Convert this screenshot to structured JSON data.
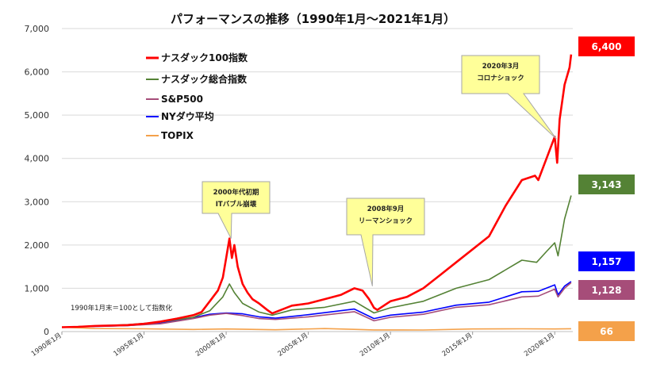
{
  "chart_data": {
    "type": "line",
    "title": "パフォーマンスの推移（1990年1月～2021年1月）",
    "note": "1990年1月末＝100として指数化",
    "ylim": [
      0,
      7000
    ],
    "y_ticks": [
      "0",
      "1,000",
      "2,000",
      "3,000",
      "4,000",
      "5,000",
      "6,000",
      "7,000"
    ],
    "x_tick_labels": [
      "1990年1月",
      "1995年1月",
      "2000年1月",
      "2005年1月",
      "2010年1月",
      "2015年1月",
      "2020年1月"
    ],
    "x_tick_years": [
      1990,
      1995,
      2000,
      2005,
      2010,
      2015,
      2020
    ],
    "xlim": [
      1990.0,
      2021.1
    ],
    "grid": true,
    "legend_position": "top-left",
    "series": [
      {
        "name": "ナスダック100指数",
        "color": "#ff0000",
        "x": [
          1990.0,
          1991.0,
          1992.0,
          1993.0,
          1994.0,
          1995.0,
          1996.0,
          1997.0,
          1998.0,
          1998.5,
          1999.0,
          1999.5,
          1999.8,
          2000.0,
          2000.2,
          2000.35,
          2000.5,
          2000.7,
          2001.0,
          2001.3,
          2001.6,
          2002.0,
          2002.5,
          2002.8,
          2003.0,
          2004.0,
          2005.0,
          2006.0,
          2007.0,
          2007.8,
          2008.3,
          2008.7,
          2009.0,
          2009.2,
          2010.0,
          2011.0,
          2012.0,
          2013.0,
          2014.0,
          2015.0,
          2016.0,
          2017.0,
          2018.0,
          2018.8,
          2019.0,
          2019.5,
          2020.0,
          2020.15,
          2020.3,
          2020.6,
          2020.9,
          2021.0
        ],
        "values": [
          100,
          110,
          130,
          140,
          150,
          180,
          230,
          300,
          380,
          450,
          700,
          950,
          1250,
          1700,
          2150,
          1700,
          2000,
          1500,
          1100,
          900,
          750,
          650,
          500,
          420,
          450,
          600,
          650,
          750,
          850,
          1000,
          950,
          750,
          550,
          500,
          700,
          800,
          1000,
          1300,
          1600,
          1900,
          2200,
          2900,
          3500,
          3600,
          3500,
          4000,
          4500,
          3900,
          4900,
          5700,
          6100,
          6400
        ]
      },
      {
        "name": "ナスダック総合指数",
        "color": "#548235",
        "x": [
          1990.0,
          1992.0,
          1994.0,
          1996.0,
          1998.0,
          1999.0,
          1999.8,
          2000.2,
          2000.5,
          2001.0,
          2002.0,
          2002.8,
          2004.0,
          2006.0,
          2007.8,
          2009.0,
          2010.0,
          2012.0,
          2014.0,
          2016.0,
          2018.0,
          2018.9,
          2019.5,
          2020.0,
          2020.2,
          2020.6,
          2021.0
        ],
        "values": [
          100,
          130,
          160,
          220,
          330,
          480,
          800,
          1100,
          900,
          650,
          450,
          380,
          500,
          560,
          700,
          430,
          550,
          700,
          1000,
          1200,
          1650,
          1600,
          1850,
          2050,
          1750,
          2600,
          3143
        ]
      },
      {
        "name": "S&P500",
        "color": "#a64d79",
        "x": [
          1990.0,
          1992.0,
          1994.0,
          1996.0,
          1998.0,
          1999.0,
          2000.0,
          2001.0,
          2002.0,
          2003.0,
          2005.0,
          2007.8,
          2009.0,
          2010.0,
          2012.0,
          2014.0,
          2016.0,
          2018.0,
          2019.0,
          2020.0,
          2020.2,
          2020.6,
          2021.0
        ],
        "values": [
          100,
          130,
          140,
          180,
          300,
          380,
          420,
          370,
          300,
          280,
          340,
          460,
          250,
          330,
          400,
          560,
          620,
          800,
          820,
          980,
          800,
          1000,
          1128
        ]
      },
      {
        "name": "NYダウ平均",
        "color": "#0000ff",
        "x": [
          1990.0,
          1992.0,
          1994.0,
          1996.0,
          1998.0,
          1999.0,
          2000.0,
          2001.0,
          2002.0,
          2003.0,
          2005.0,
          2007.8,
          2009.0,
          2010.0,
          2012.0,
          2014.0,
          2016.0,
          2018.0,
          2019.0,
          2020.0,
          2020.2,
          2020.6,
          2021.0
        ],
        "values": [
          100,
          120,
          140,
          190,
          320,
          400,
          430,
          410,
          340,
          310,
          390,
          520,
          300,
          380,
          450,
          610,
          680,
          920,
          930,
          1080,
          850,
          1050,
          1157
        ]
      },
      {
        "name": "TOPIX",
        "color": "#f4a14a",
        "x": [
          1990.0,
          1992.0,
          1995.0,
          1998.0,
          2000.0,
          2003.0,
          2006.0,
          2008.0,
          2009.0,
          2012.0,
          2015.0,
          2018.0,
          2020.0,
          2021.0
        ],
        "values": [
          100,
          70,
          65,
          50,
          60,
          42,
          70,
          50,
          38,
          36,
          60,
          65,
          60,
          66
        ]
      }
    ],
    "end_labels": [
      {
        "text": "6,400",
        "color": "#ff0000"
      },
      {
        "text": "3,143",
        "color": "#548235"
      },
      {
        "text": "1,157",
        "color": "#0000ff"
      },
      {
        "text": "1,128",
        "color": "#a64d79"
      },
      {
        "text": "66",
        "color": "#f4a14a"
      }
    ],
    "annotations": [
      {
        "lines": [
          "2000年代初期",
          "ITバブル崩壊"
        ],
        "x": 2000.3,
        "y": 2150
      },
      {
        "lines": [
          "2008年9月",
          "リーマンショック"
        ],
        "x": 2008.9,
        "y": 1050
      },
      {
        "lines": [
          "2020年3月",
          "コロナショック"
        ],
        "x": 2020.1,
        "y": 4450
      }
    ]
  }
}
